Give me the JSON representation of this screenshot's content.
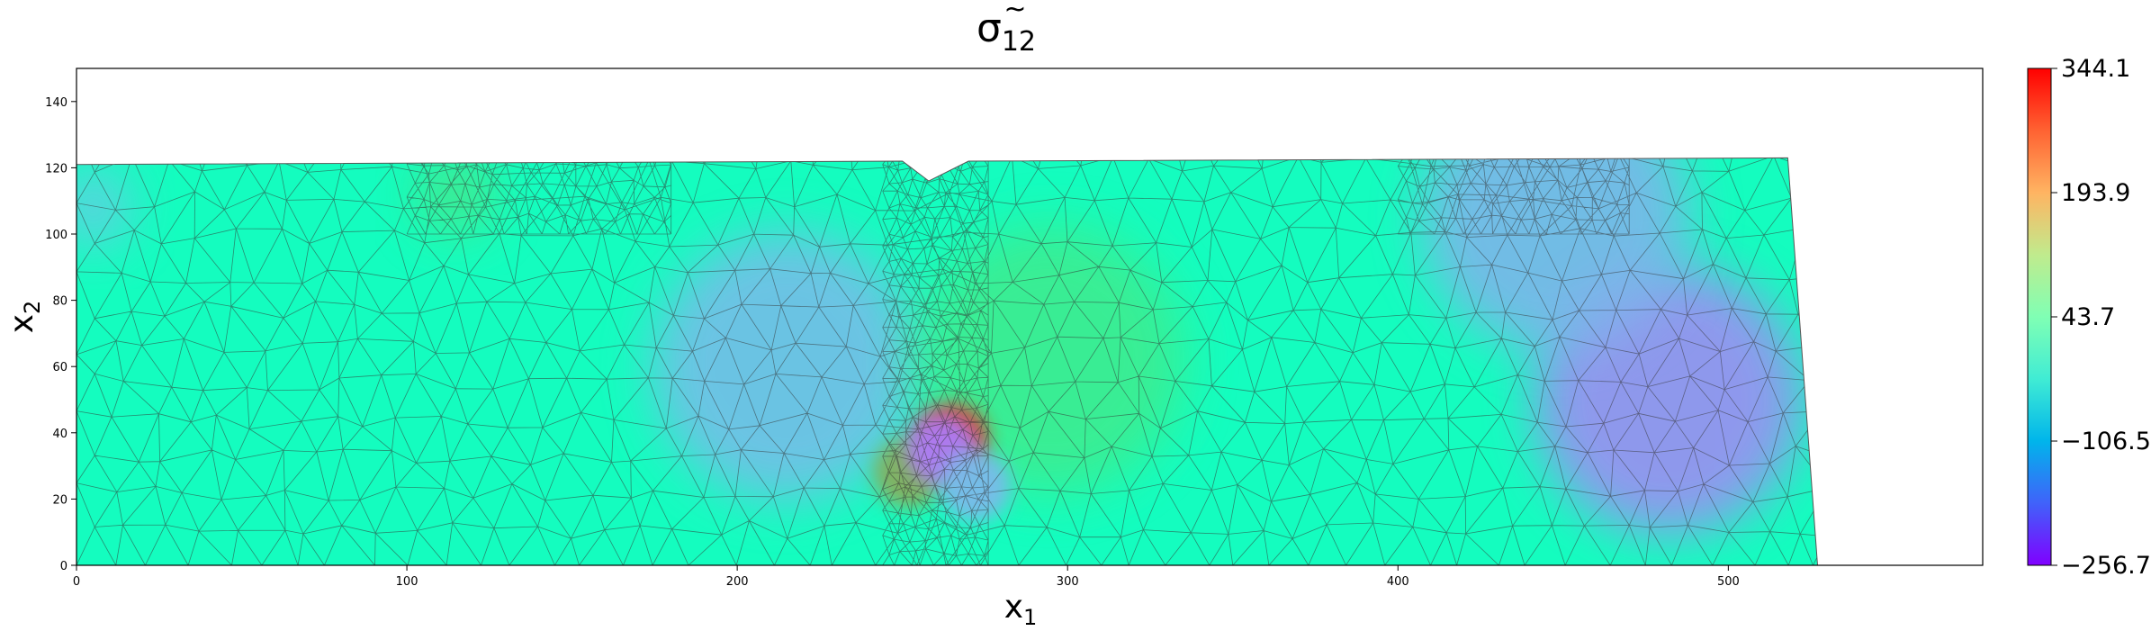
{
  "chart_data": {
    "type": "heatmap",
    "title": {
      "base": "σ",
      "sub": "12"
    },
    "xlabel": {
      "base": "x",
      "sub": "1"
    },
    "ylabel": {
      "base": "x",
      "sub": "2"
    },
    "xlim": [
      0,
      577
    ],
    "ylim": [
      0,
      150
    ],
    "x_ticks": [
      0,
      100,
      200,
      300,
      400,
      500
    ],
    "y_ticks": [
      0,
      20,
      40,
      60,
      80,
      100,
      120,
      140
    ],
    "colormap": "rainbow",
    "colorbar": {
      "min": -256.7,
      "max": 344.1,
      "ticks": [
        "344.1",
        "193.9",
        "43.7",
        "−106.5",
        "−256.7"
      ]
    },
    "domain_outline": [
      [
        0,
        0
      ],
      [
        527,
        0
      ],
      [
        518,
        123
      ],
      [
        270,
        122
      ],
      [
        258,
        116
      ],
      [
        250,
        122
      ],
      [
        0,
        121
      ]
    ],
    "field_hotspots": [
      {
        "x": 215,
        "y": 60,
        "value": -100
      },
      {
        "x": 482,
        "y": 50,
        "value": -150
      },
      {
        "x": 448,
        "y": 105,
        "value": -110
      },
      {
        "x": 295,
        "y": 62,
        "value": 120
      },
      {
        "x": 265,
        "y": 38,
        "value": 300
      },
      {
        "x": 252,
        "y": 28,
        "value": 200
      },
      {
        "x": 262,
        "y": 35,
        "value": -160
      },
      {
        "x": 272,
        "y": 24,
        "value": -100
      },
      {
        "x": 115,
        "y": 112,
        "value": 130
      },
      {
        "x": 5,
        "y": 108,
        "value": -80
      }
    ],
    "colors": {
      "background": "#ffffff",
      "mesh_lines": "#333333",
      "axes": "#000000"
    }
  }
}
